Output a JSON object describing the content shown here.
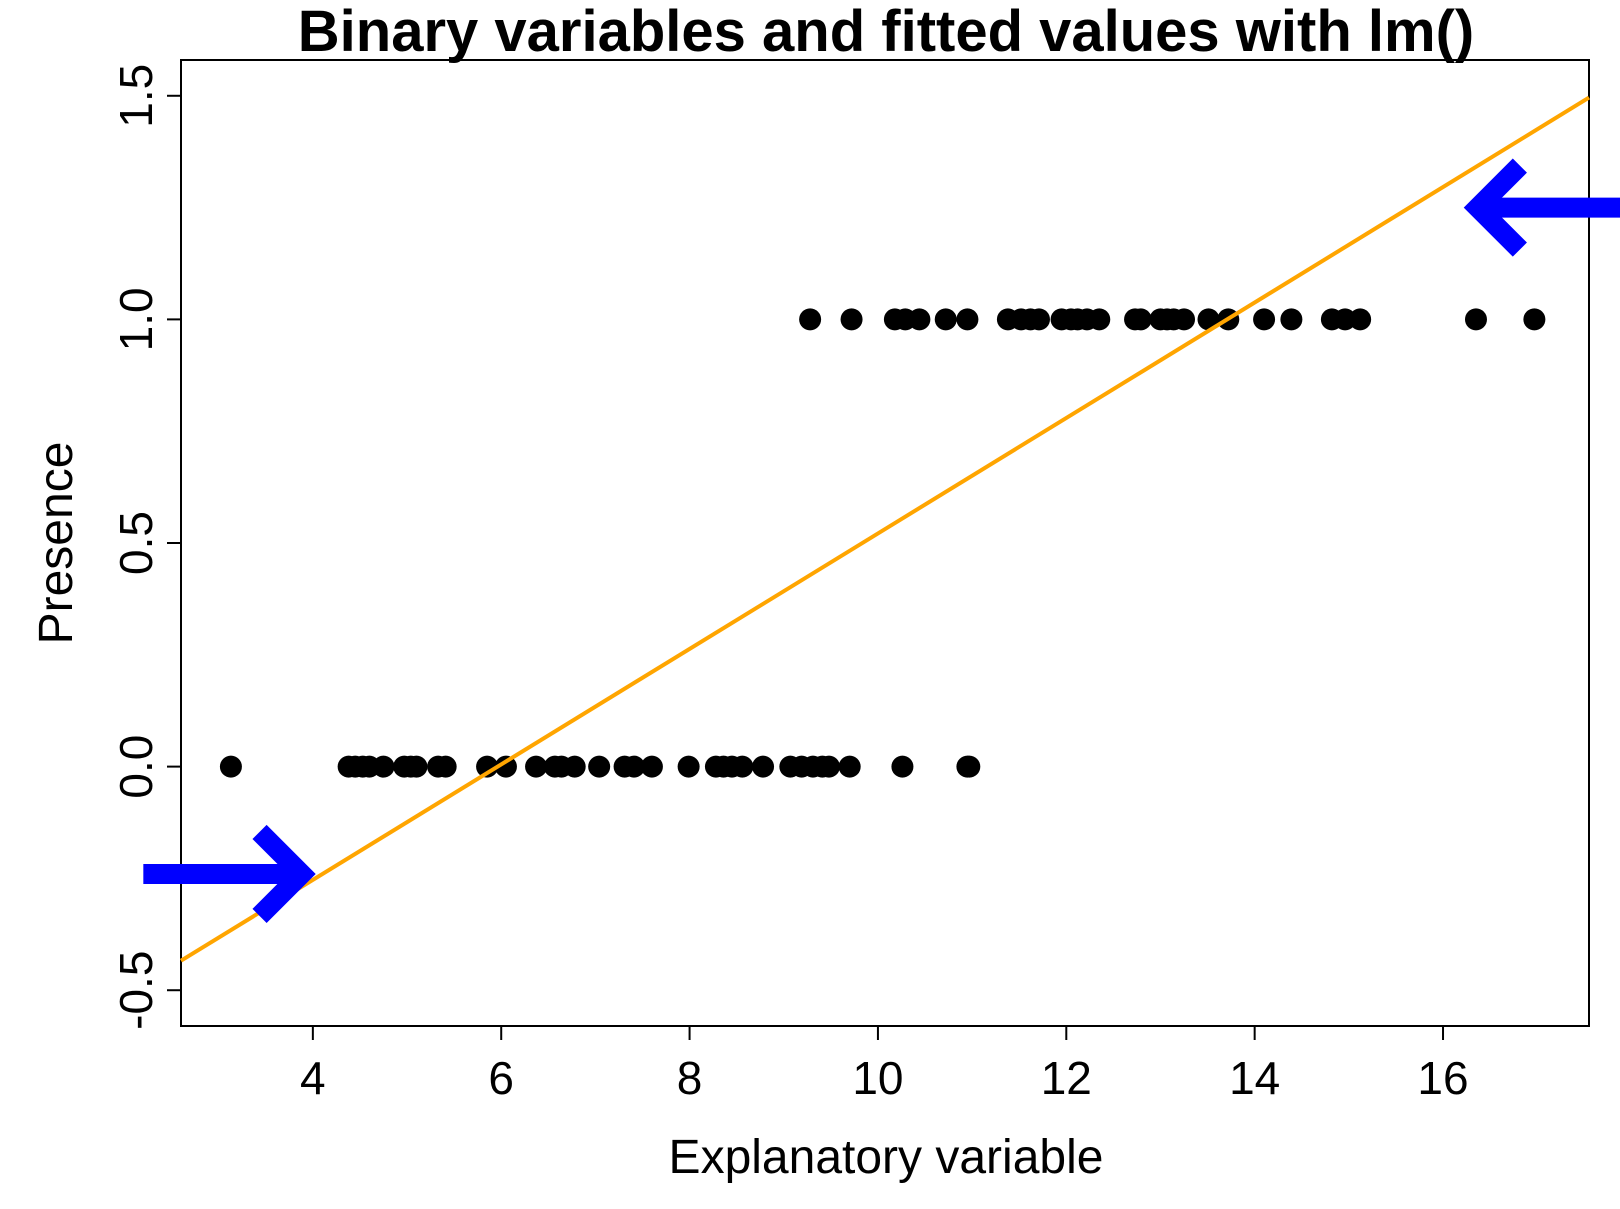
{
  "chart_data": {
    "type": "scatter",
    "title": "Binary variables and fitted values with lm()",
    "xlabel": "Explanatory variable",
    "ylabel": "Presence",
    "xlim": [
      2.6,
      17.55
    ],
    "ylim": [
      -0.58,
      1.58
    ],
    "xticks": [
      4,
      6,
      8,
      10,
      12,
      14,
      16
    ],
    "yticks": [
      -0.5,
      0.0,
      0.5,
      1.0,
      1.5
    ],
    "xtick_labels": [
      "4",
      "6",
      "8",
      "10",
      "12",
      "14",
      "16"
    ],
    "ytick_labels": [
      "-0.5",
      "0.0",
      "0.5",
      "1.0",
      "1.5"
    ],
    "grid": false,
    "series": [
      {
        "color": "#000000",
        "marker": "filled-circle",
        "x": [
          3.13,
          4.38,
          4.45,
          4.53,
          4.6,
          4.75,
          4.97,
          5.04,
          5.1,
          5.33,
          5.41,
          5.85,
          6.05,
          6.37,
          6.57,
          6.64,
          6.78,
          7.04,
          7.31,
          7.41,
          7.6,
          7.99,
          8.28,
          8.36,
          8.45,
          8.56,
          8.78,
          9.07,
          9.19,
          9.31,
          9.41,
          9.48,
          9.7,
          10.26,
          10.95,
          10.97
        ],
        "y": [
          0,
          0,
          0,
          0,
          0,
          0,
          0,
          0,
          0,
          0,
          0,
          0,
          0,
          0,
          0,
          0,
          0,
          0,
          0,
          0,
          0,
          0,
          0,
          0,
          0,
          0,
          0,
          0,
          0,
          0,
          0,
          0,
          0,
          0,
          0,
          0
        ]
      },
      {
        "color": "#000000",
        "marker": "filled-circle",
        "x": [
          9.28,
          9.72,
          10.18,
          10.29,
          10.44,
          10.72,
          10.95,
          11.38,
          11.52,
          11.62,
          11.71,
          11.95,
          12.05,
          12.12,
          12.22,
          12.35,
          12.73,
          12.79,
          13.0,
          13.07,
          13.14,
          13.25,
          13.51,
          13.72,
          14.1,
          14.39,
          14.82,
          14.96,
          15.12,
          16.35,
          16.97
        ],
        "y": [
          1,
          1,
          1,
          1,
          1,
          1,
          1,
          1,
          1,
          1,
          1,
          1,
          1,
          1,
          1,
          1,
          1,
          1,
          1,
          1,
          1,
          1,
          1,
          1,
          1,
          1,
          1,
          1,
          1,
          1,
          1
        ]
      }
    ],
    "fitted_line": {
      "color": "#ffa500",
      "x": [
        2.6,
        17.55
      ],
      "y": [
        -0.434,
        1.496
      ]
    },
    "annotations": [
      {
        "type": "arrow",
        "direction": "right",
        "color": "#0000ff",
        "from": [
          2.2,
          -0.24
        ],
        "to": [
          3.88,
          -0.24
        ]
      },
      {
        "type": "arrow",
        "direction": "left",
        "color": "#0000ff",
        "from": [
          17.9,
          1.25
        ],
        "to": [
          16.37,
          1.25
        ]
      }
    ]
  }
}
